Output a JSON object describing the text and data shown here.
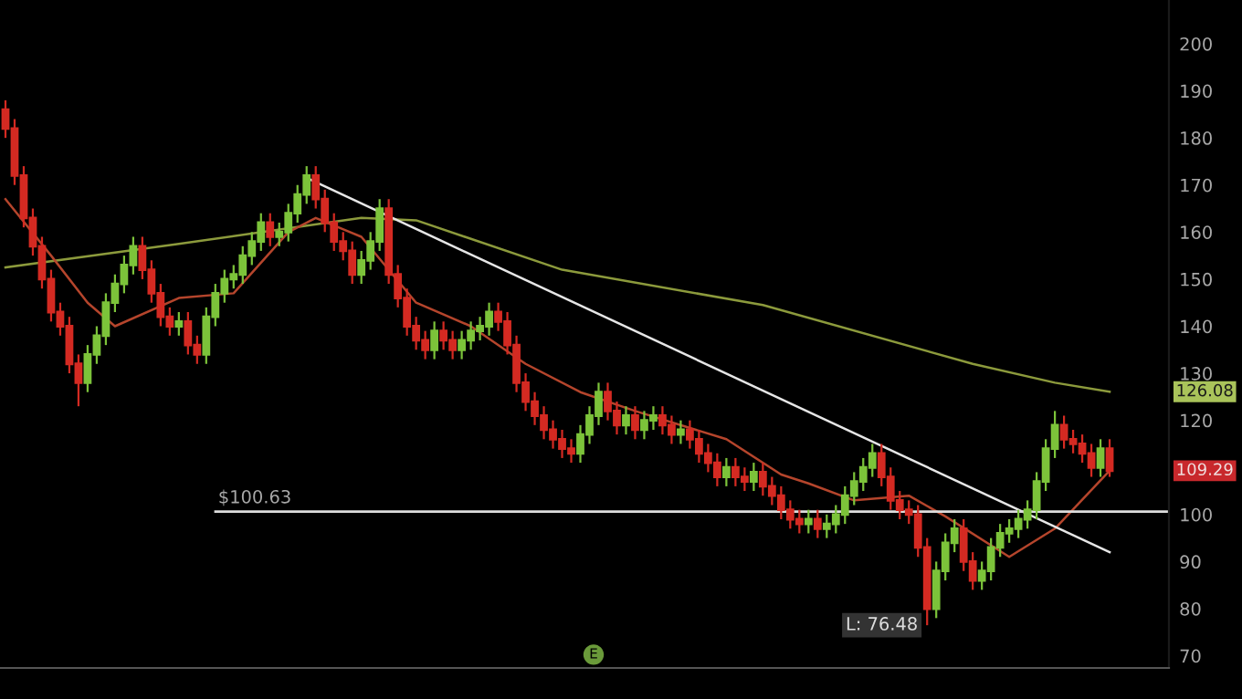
{
  "chart_data": {
    "type": "candlestick",
    "categories": [
      null,
      null,
      null,
      null,
      null,
      null,
      null,
      null,
      null,
      null,
      null,
      null,
      null,
      null,
      null,
      null,
      null,
      null,
      null,
      null,
      null,
      null,
      null,
      null,
      null,
      null,
      null,
      null,
      null,
      null,
      null,
      null,
      null,
      null,
      null,
      null,
      null,
      null,
      null,
      null,
      null,
      null,
      null,
      null,
      null,
      null,
      null,
      null,
      null,
      null,
      null,
      null,
      null,
      null,
      null,
      null,
      null,
      null,
      null,
      null,
      null,
      null,
      null,
      null,
      null,
      null,
      null,
      null,
      null,
      null,
      null,
      null,
      null,
      null,
      null,
      null,
      null,
      null,
      null,
      null,
      null,
      null,
      null,
      null,
      null,
      null,
      null,
      null,
      null,
      null,
      null,
      null,
      null,
      null,
      null,
      null,
      null,
      null,
      null,
      null,
      null,
      null,
      null,
      null,
      null,
      null,
      null,
      null,
      null,
      null,
      null,
      null,
      null,
      null,
      null,
      null,
      null,
      null,
      null,
      null,
      null,
      null
    ],
    "ohlc": [
      [
        186,
        188,
        180,
        182
      ],
      [
        182,
        184,
        170,
        172
      ],
      [
        172,
        174,
        161,
        163
      ],
      [
        163,
        165,
        155,
        157
      ],
      [
        157,
        159,
        148,
        150
      ],
      [
        150,
        152,
        141,
        143
      ],
      [
        143,
        145,
        138,
        140
      ],
      [
        140,
        142,
        130,
        132
      ],
      [
        132,
        134,
        123,
        128
      ],
      [
        128,
        136,
        126,
        134
      ],
      [
        134,
        140,
        132,
        138
      ],
      [
        138,
        147,
        136,
        145
      ],
      [
        145,
        151,
        143,
        149
      ],
      [
        149,
        155,
        147,
        153
      ],
      [
        153,
        159,
        151,
        157
      ],
      [
        157,
        159,
        150,
        152
      ],
      [
        152,
        154,
        145,
        147
      ],
      [
        147,
        149,
        140,
        142
      ],
      [
        142,
        144,
        138,
        140
      ],
      [
        140,
        143,
        138,
        141
      ],
      [
        141,
        143,
        134,
        136
      ],
      [
        136,
        138,
        132,
        134
      ],
      [
        134,
        144,
        132,
        142
      ],
      [
        142,
        149,
        140,
        147
      ],
      [
        147,
        152,
        145,
        150
      ],
      [
        150,
        153,
        148,
        151
      ],
      [
        151,
        157,
        149,
        155
      ],
      [
        155,
        160,
        153,
        158
      ],
      [
        158,
        164,
        156,
        162
      ],
      [
        162,
        164,
        157,
        159
      ],
      [
        159,
        162,
        157,
        160
      ],
      [
        160,
        166,
        158,
        164
      ],
      [
        164,
        170,
        162,
        168
      ],
      [
        168,
        174,
        166,
        172
      ],
      [
        172,
        174,
        165,
        167
      ],
      [
        167,
        169,
        160,
        162
      ],
      [
        162,
        164,
        156,
        158
      ],
      [
        158,
        160,
        154,
        156
      ],
      [
        156,
        158,
        149,
        151
      ],
      [
        151,
        156,
        149,
        154
      ],
      [
        154,
        160,
        152,
        158
      ],
      [
        158,
        167,
        156,
        165
      ],
      [
        165,
        167,
        149,
        151
      ],
      [
        151,
        153,
        144,
        146
      ],
      [
        146,
        148,
        138,
        140
      ],
      [
        140,
        142,
        135,
        137
      ],
      [
        137,
        139,
        133,
        135
      ],
      [
        135,
        141,
        133,
        139
      ],
      [
        139,
        141,
        135,
        137
      ],
      [
        137,
        139,
        133,
        135
      ],
      [
        135,
        139,
        133,
        137
      ],
      [
        137,
        141,
        135,
        139
      ],
      [
        139,
        142,
        137,
        140
      ],
      [
        140,
        145,
        138,
        143
      ],
      [
        143,
        145,
        139,
        141
      ],
      [
        141,
        143,
        134,
        136
      ],
      [
        136,
        138,
        126,
        128
      ],
      [
        128,
        130,
        122,
        124
      ],
      [
        124,
        126,
        119,
        121
      ],
      [
        121,
        123,
        116,
        118
      ],
      [
        118,
        120,
        114,
        116
      ],
      [
        116,
        118,
        112,
        114
      ],
      [
        114,
        116,
        111,
        113
      ],
      [
        113,
        119,
        111,
        117
      ],
      [
        117,
        123,
        115,
        121
      ],
      [
        121,
        128,
        119,
        126
      ],
      [
        126,
        128,
        120,
        122
      ],
      [
        122,
        124,
        117,
        119
      ],
      [
        119,
        123,
        117,
        121
      ],
      [
        121,
        123,
        116,
        118
      ],
      [
        118,
        122,
        116,
        120
      ],
      [
        120,
        123,
        118,
        121
      ],
      [
        121,
        123,
        117,
        119
      ],
      [
        119,
        121,
        115,
        117
      ],
      [
        117,
        120,
        115,
        118
      ],
      [
        118,
        120,
        114,
        116
      ],
      [
        116,
        118,
        111,
        113
      ],
      [
        113,
        115,
        109,
        111
      ],
      [
        111,
        113,
        106,
        108
      ],
      [
        108,
        112,
        106,
        110
      ],
      [
        110,
        112,
        106,
        108
      ],
      [
        108,
        110,
        105,
        107
      ],
      [
        107,
        111,
        105,
        109
      ],
      [
        109,
        111,
        104,
        106
      ],
      [
        106,
        108,
        102,
        104
      ],
      [
        104,
        106,
        99,
        101
      ],
      [
        101,
        103,
        97,
        99
      ],
      [
        99,
        101,
        96,
        98
      ],
      [
        98,
        101,
        96,
        99
      ],
      [
        99,
        101,
        95,
        97
      ],
      [
        97,
        100,
        95,
        98
      ],
      [
        98,
        102,
        96,
        100
      ],
      [
        100,
        106,
        98,
        104
      ],
      [
        104,
        109,
        102,
        107
      ],
      [
        107,
        112,
        105,
        110
      ],
      [
        110,
        115,
        108,
        113
      ],
      [
        113,
        115,
        106,
        108
      ],
      [
        108,
        110,
        101,
        103
      ],
      [
        103,
        105,
        99,
        101
      ],
      [
        101,
        103,
        98,
        100
      ],
      [
        100,
        102,
        91,
        93
      ],
      [
        93,
        95,
        76.48,
        80
      ],
      [
        80,
        90,
        78,
        88
      ],
      [
        88,
        96,
        86,
        94
      ],
      [
        94,
        99,
        92,
        97
      ],
      [
        97,
        99,
        88,
        90
      ],
      [
        90,
        92,
        84,
        86
      ],
      [
        86,
        90,
        84,
        88
      ],
      [
        88,
        95,
        86,
        93
      ],
      [
        93,
        98,
        91,
        96
      ],
      [
        96,
        99,
        94,
        97
      ],
      [
        97,
        101,
        95,
        99
      ],
      [
        99,
        103,
        97,
        101
      ],
      [
        101,
        109,
        99,
        107
      ],
      [
        107,
        116,
        105,
        114
      ],
      [
        114,
        122,
        112,
        119
      ],
      [
        119,
        121,
        114,
        116
      ],
      [
        116,
        118,
        113,
        115
      ],
      [
        115,
        117,
        111,
        113
      ],
      [
        113,
        115,
        108,
        110
      ],
      [
        110,
        116,
        108,
        114
      ],
      [
        114,
        116,
        108,
        109.29
      ]
    ],
    "series": [
      {
        "type": "line",
        "color": "#8c9a3c",
        "values": [
          152.5,
          null,
          null,
          null,
          null,
          null,
          null,
          null,
          null,
          null,
          null,
          null,
          null,
          null,
          null,
          null,
          null,
          null,
          null,
          157.5,
          null,
          null,
          null,
          null,
          null,
          null,
          null,
          null,
          null,
          null,
          null,
          null,
          null,
          null,
          null,
          null,
          null,
          null,
          null,
          163,
          null,
          null,
          null,
          null,
          null,
          162.5,
          null,
          null,
          null,
          null,
          null,
          null,
          null,
          null,
          null,
          null,
          null,
          null,
          null,
          null,
          null,
          152,
          null,
          null,
          null,
          null,
          null,
          null,
          null,
          null,
          null,
          null,
          null,
          null,
          null,
          null,
          null,
          null,
          null,
          null,
          null,
          null,
          null,
          144.5,
          null,
          null,
          null,
          null,
          null,
          null,
          null,
          null,
          null,
          null,
          null,
          null,
          null,
          null,
          null,
          null,
          null,
          null,
          null,
          null,
          null,
          null,
          132,
          null,
          null,
          null,
          null,
          null,
          null,
          null,
          null,
          128,
          null,
          null,
          null,
          null,
          null,
          126.1
        ]
      },
      {
        "type": "line",
        "color": "#b5452c",
        "values": [
          167,
          null,
          null,
          null,
          null,
          155,
          null,
          null,
          null,
          145,
          null,
          null,
          140,
          null,
          null,
          null,
          null,
          null,
          null,
          146,
          null,
          null,
          null,
          null,
          null,
          147,
          null,
          null,
          null,
          null,
          null,
          160,
          null,
          null,
          163,
          null,
          null,
          null,
          null,
          159,
          null,
          null,
          null,
          null,
          null,
          145,
          null,
          null,
          null,
          null,
          null,
          140,
          null,
          null,
          null,
          null,
          null,
          132,
          null,
          null,
          null,
          null,
          null,
          126,
          null,
          null,
          null,
          null,
          null,
          122,
          null,
          null,
          null,
          null,
          null,
          null,
          null,
          null,
          null,
          116,
          null,
          null,
          null,
          null,
          null,
          108.5,
          null,
          null,
          106.6,
          null,
          null,
          null,
          null,
          103,
          null,
          null,
          null,
          null,
          null,
          104,
          null,
          null,
          null,
          99.6,
          null,
          null,
          null,
          null,
          null,
          null,
          91,
          null,
          null,
          null,
          null,
          97,
          null,
          null,
          null,
          null,
          null,
          109.3
        ]
      },
      {
        "type": "line",
        "color": "#e6e6e6",
        "values": [
          null,
          null,
          null,
          null,
          null,
          null,
          null,
          null,
          null,
          null,
          null,
          null,
          null,
          null,
          null,
          null,
          null,
          null,
          null,
          null,
          null,
          null,
          null,
          null,
          null,
          null,
          null,
          null,
          null,
          null,
          null,
          null,
          null,
          171.5,
          null,
          null,
          null,
          null,
          null,
          null,
          null,
          null,
          null,
          null,
          null,
          null,
          null,
          null,
          null,
          null,
          null,
          null,
          null,
          null,
          null,
          null,
          null,
          null,
          null,
          null,
          null,
          null,
          null,
          null,
          null,
          null,
          null,
          null,
          null,
          null,
          null,
          null,
          null,
          null,
          null,
          null,
          null,
          null,
          null,
          null,
          null,
          null,
          null,
          null,
          null,
          null,
          null,
          null,
          null,
          null,
          null,
          null,
          null,
          null,
          null,
          null,
          null,
          null,
          null,
          null,
          null,
          null,
          null,
          null,
          null,
          null,
          null,
          null,
          null,
          null,
          null,
          null,
          null,
          null,
          null,
          null,
          null,
          null,
          null,
          null,
          null,
          92
        ]
      }
    ],
    "ylim": [
      67.4,
      209.3
    ],
    "yticks": [
      70,
      80,
      90,
      100,
      120,
      130,
      140,
      150,
      160,
      170,
      180,
      190,
      200
    ],
    "ref_lines": [
      {
        "axis": "y",
        "value": 100.63,
        "label": "$100.63",
        "color": "#dddddd"
      }
    ],
    "annotations": [
      "126.08",
      "109.29",
      {
        "text": "L: 76.48",
        "y": 76.48
      },
      "E"
    ],
    "grid": false,
    "legend": false
  }
}
